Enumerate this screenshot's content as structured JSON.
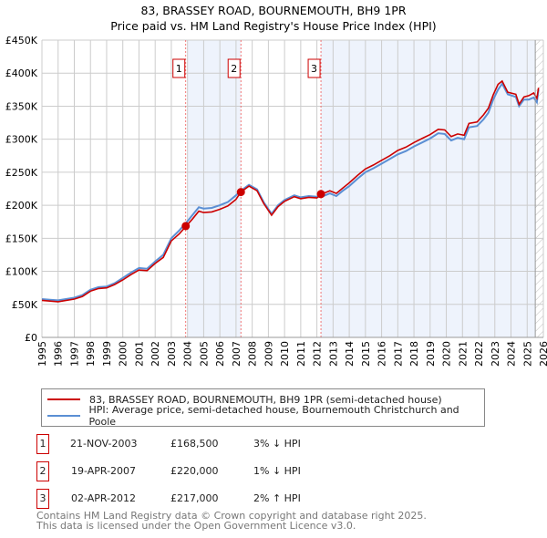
{
  "chart_data": {
    "type": "line",
    "title": "83, BRASSEY ROAD, BOURNEMOUTH, BH9 1PR",
    "subtitle": "Price paid vs. HM Land Registry's House Price Index (HPI)",
    "xlim": [
      1995,
      2026
    ],
    "ylim": [
      0,
      450000
    ],
    "y_ticks": [
      {
        "v": 0,
        "label": "£0"
      },
      {
        "v": 50000,
        "label": "£50K"
      },
      {
        "v": 100000,
        "label": "£100K"
      },
      {
        "v": 150000,
        "label": "£150K"
      },
      {
        "v": 200000,
        "label": "£200K"
      },
      {
        "v": 250000,
        "label": "£250K"
      },
      {
        "v": 300000,
        "label": "£300K"
      },
      {
        "v": 350000,
        "label": "£350K"
      },
      {
        "v": 400000,
        "label": "£400K"
      },
      {
        "v": 450000,
        "label": "£450K"
      }
    ],
    "x_ticks": [
      "1995",
      "1996",
      "1997",
      "1998",
      "1999",
      "2000",
      "2001",
      "2002",
      "2003",
      "2004",
      "2005",
      "2006",
      "2007",
      "2008",
      "2009",
      "2010",
      "2011",
      "2012",
      "2013",
      "2014",
      "2015",
      "2016",
      "2017",
      "2018",
      "2019",
      "2020",
      "2021",
      "2022",
      "2023",
      "2024",
      "2025",
      "2026"
    ],
    "grid": true,
    "shaded_ranges": [
      [
        2004.0,
        2007.3
      ],
      [
        2012.25,
        2025.5
      ]
    ],
    "hatched_from": 2025.5,
    "x": [
      1995,
      1995.5,
      1996,
      1997,
      1997.5,
      1998,
      1998.5,
      1999,
      1999.5,
      2000,
      2000.5,
      2001,
      2001.5,
      2002,
      2002.5,
      2003,
      2003.5,
      2003.9,
      2004.3,
      2004.7,
      2005,
      2005.5,
      2006,
      2006.5,
      2007,
      2007.3,
      2007.8,
      2008.3,
      2008.7,
      2009.2,
      2009.6,
      2010,
      2010.6,
      2011,
      2011.5,
      2012,
      2012.3,
      2012.8,
      2013.2,
      2013.6,
      2014,
      2014.5,
      2015,
      2015.5,
      2016,
      2016.5,
      2017,
      2017.5,
      2018,
      2018.5,
      2019,
      2019.5,
      2019.9,
      2020.3,
      2020.7,
      2021.1,
      2021.4,
      2021.9,
      2022.3,
      2022.6,
      2022.9,
      2023.2,
      2023.45,
      2023.8,
      2024.3,
      2024.5,
      2024.8,
      2025.1,
      2025.4,
      2025.6,
      2025.7
    ],
    "series": [
      {
        "name": "83, BRASSEY ROAD, BOURNEMOUTH, BH9 1PR (semi-detached house)",
        "color": "#cc0000",
        "values": [
          56,
          55,
          54,
          58,
          62,
          70,
          74,
          75,
          80,
          87,
          95,
          102,
          101,
          112,
          121,
          146,
          157,
          168,
          179,
          191,
          189,
          190,
          194,
          199,
          209,
          220,
          229,
          222,
          203,
          185,
          198,
          206,
          213,
          210,
          212,
          211,
          217,
          222,
          218,
          226,
          234,
          245,
          255,
          261,
          268,
          275,
          283,
          288,
          295,
          301,
          307,
          315,
          314,
          304,
          308,
          306,
          324,
          326,
          337,
          347,
          367,
          383,
          388,
          371,
          368,
          353,
          364,
          366,
          370,
          362,
          378
        ]
      },
      {
        "name": "HPI: Average price, semi-detached house, Bournemouth Christchurch and Poole",
        "color": "#5b8fd4",
        "values": [
          58,
          57,
          56,
          60,
          64,
          72,
          76,
          77,
          82,
          90,
          98,
          105,
          104,
          115,
          125,
          150,
          162,
          173,
          185,
          197,
          195,
          196,
          200,
          205,
          215,
          222,
          231,
          224,
          205,
          187,
          200,
          208,
          215,
          212,
          214,
          213,
          213,
          218,
          214,
          222,
          229,
          240,
          250,
          256,
          263,
          270,
          277,
          282,
          289,
          295,
          301,
          309,
          308,
          298,
          302,
          300,
          318,
          320,
          330,
          340,
          360,
          375,
          384,
          368,
          364,
          350,
          360,
          360,
          363,
          356,
          375
        ]
      }
    ],
    "values_unit": "thousand GBP",
    "sales": [
      {
        "label": "1",
        "x": 2003.89,
        "price": 168500,
        "date": "21-NOV-2003",
        "price_text": "£168,500",
        "hpi_text": "3% ↓ HPI"
      },
      {
        "label": "2",
        "x": 2007.3,
        "price": 220000,
        "date": "19-APR-2007",
        "price_text": "£220,000",
        "hpi_text": "1% ↓ HPI"
      },
      {
        "label": "3",
        "x": 2012.25,
        "price": 217000,
        "date": "02-APR-2012",
        "price_text": "£217,000",
        "hpi_text": "2% ↑ HPI"
      }
    ]
  },
  "footer": {
    "line1": "Contains HM Land Registry data © Crown copyright and database right 2025.",
    "line2": "This data is licensed under the Open Government Licence v3.0."
  }
}
